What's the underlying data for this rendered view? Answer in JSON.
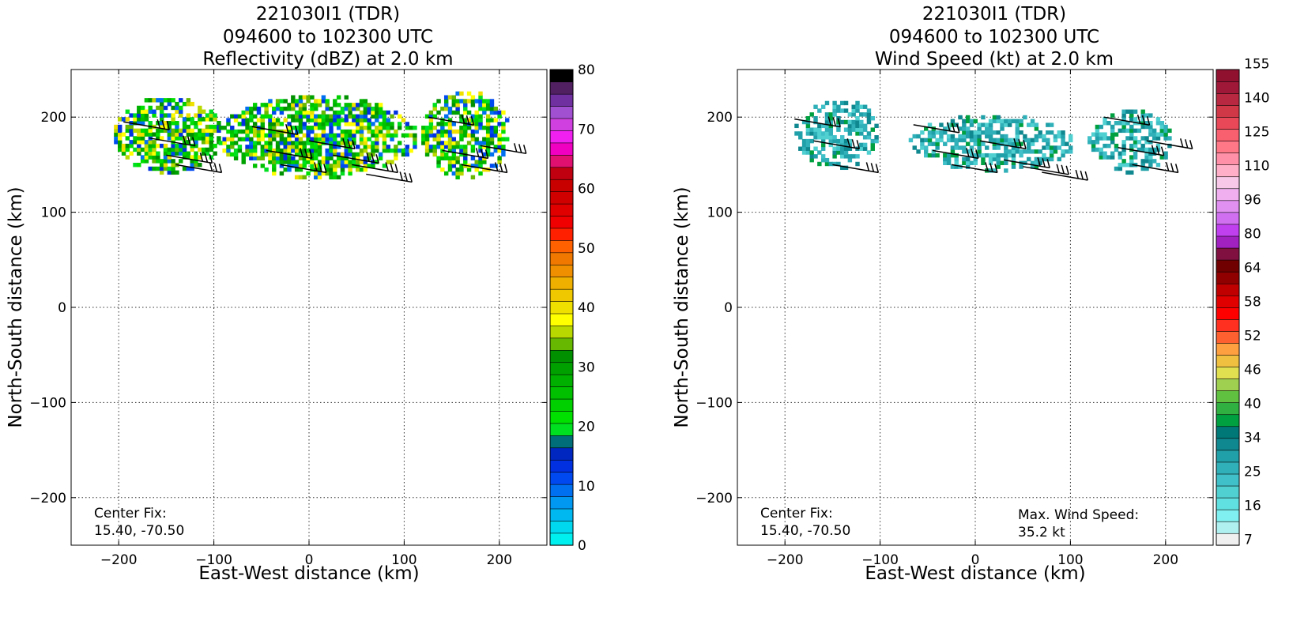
{
  "chart_data": [
    {
      "type": "heatmap",
      "title": [
        "221030I1 (TDR)",
        "094600 to 102300 UTC",
        "Reflectivity (dBZ) at 2.0 km"
      ],
      "xlabel": "East-West distance (km)",
      "ylabel": "North-South distance (km)",
      "xlim": [
        -250,
        250
      ],
      "ylim": [
        -250,
        250
      ],
      "xticks": [
        -200,
        -100,
        0,
        100,
        200
      ],
      "yticks": [
        -200,
        -100,
        0,
        100,
        200
      ],
      "grid": true,
      "center_fix": {
        "label": "Center Fix:",
        "value": "15.40, -70.50"
      },
      "colorbar": {
        "ticks": [
          0,
          10,
          20,
          30,
          40,
          50,
          60,
          70,
          80
        ],
        "colors": [
          "#00f0f0",
          "#00d8f0",
          "#00b8f0",
          "#0098f0",
          "#0070f0",
          "#0048f0",
          "#0030e0",
          "#0028c0",
          "#006e78",
          "#00e020",
          "#00e000",
          "#00d000",
          "#00c000",
          "#00b000",
          "#00a000",
          "#009000",
          "#66b800",
          "#b8d800",
          "#ffff00",
          "#f0e000",
          "#f0c800",
          "#f0b000",
          "#f09000",
          "#f07800",
          "#ff6000",
          "#ff2000",
          "#f00000",
          "#e00000",
          "#d00000",
          "#c80000",
          "#c00010",
          "#e01070",
          "#f000c0",
          "#f020f0",
          "#d040e0",
          "#a050d0",
          "#7030a0",
          "#502060",
          "#000000"
        ]
      },
      "echo_regions": [
        {
          "name": "west",
          "x": [
            -205,
            -95
          ],
          "y": [
            140,
            220
          ]
        },
        {
          "name": "central",
          "x": [
            -95,
            110
          ],
          "y": [
            135,
            220
          ]
        },
        {
          "name": "east",
          "x": [
            118,
            208
          ],
          "y": [
            135,
            225
          ]
        }
      ]
    },
    {
      "type": "heatmap",
      "title": [
        "221030I1 (TDR)",
        "094600 to 102300 UTC",
        "Wind Speed (kt) at 2.0 km"
      ],
      "xlabel": "East-West distance (km)",
      "ylabel": "North-South distance (km)",
      "xlim": [
        -250,
        250
      ],
      "ylim": [
        -250,
        250
      ],
      "xticks": [
        -200,
        -100,
        0,
        100,
        200
      ],
      "yticks": [
        -200,
        -100,
        0,
        100,
        200
      ],
      "grid": true,
      "center_fix": {
        "label": "Center Fix:",
        "value": "15.40, -70.50"
      },
      "max_wind": {
        "label": "Max. Wind Speed:",
        "value": "35.2 kt"
      },
      "colorbar": {
        "ticks": [
          "7",
          "16",
          "25",
          "34",
          "40",
          "46",
          "52",
          "58",
          "64",
          "80",
          "96",
          "110",
          "125",
          "140",
          "155"
        ],
        "colors": [
          "#f0f0f0",
          "#b0f0f0",
          "#80f0f0",
          "#60e0e0",
          "#50d0d0",
          "#40c0c8",
          "#30b0b8",
          "#20a0a8",
          "#108890",
          "#007878",
          "#00a040",
          "#30b040",
          "#60c040",
          "#a0d050",
          "#e0e050",
          "#f0c040",
          "#ffa040",
          "#ff6030",
          "#ff3020",
          "#ff0000",
          "#e00000",
          "#c00000",
          "#900000",
          "#700000",
          "#801040",
          "#a020c0",
          "#c040f0",
          "#d070f0",
          "#e090f0",
          "#f0b0f0",
          "#f8c8e8",
          "#ffb0c8",
          "#ff90a8",
          "#ff7888",
          "#f86070",
          "#e84858",
          "#d03848",
          "#b82840",
          "#a01838",
          "#901030"
        ]
      },
      "echo_regions": [
        {
          "name": "west",
          "x": [
            -190,
            -105
          ],
          "y": [
            145,
            218
          ]
        },
        {
          "name": "central",
          "x": [
            -70,
            100
          ],
          "y": [
            142,
            200
          ]
        },
        {
          "name": "east",
          "x": [
            118,
            205
          ],
          "y": [
            140,
            205
          ]
        }
      ]
    }
  ]
}
